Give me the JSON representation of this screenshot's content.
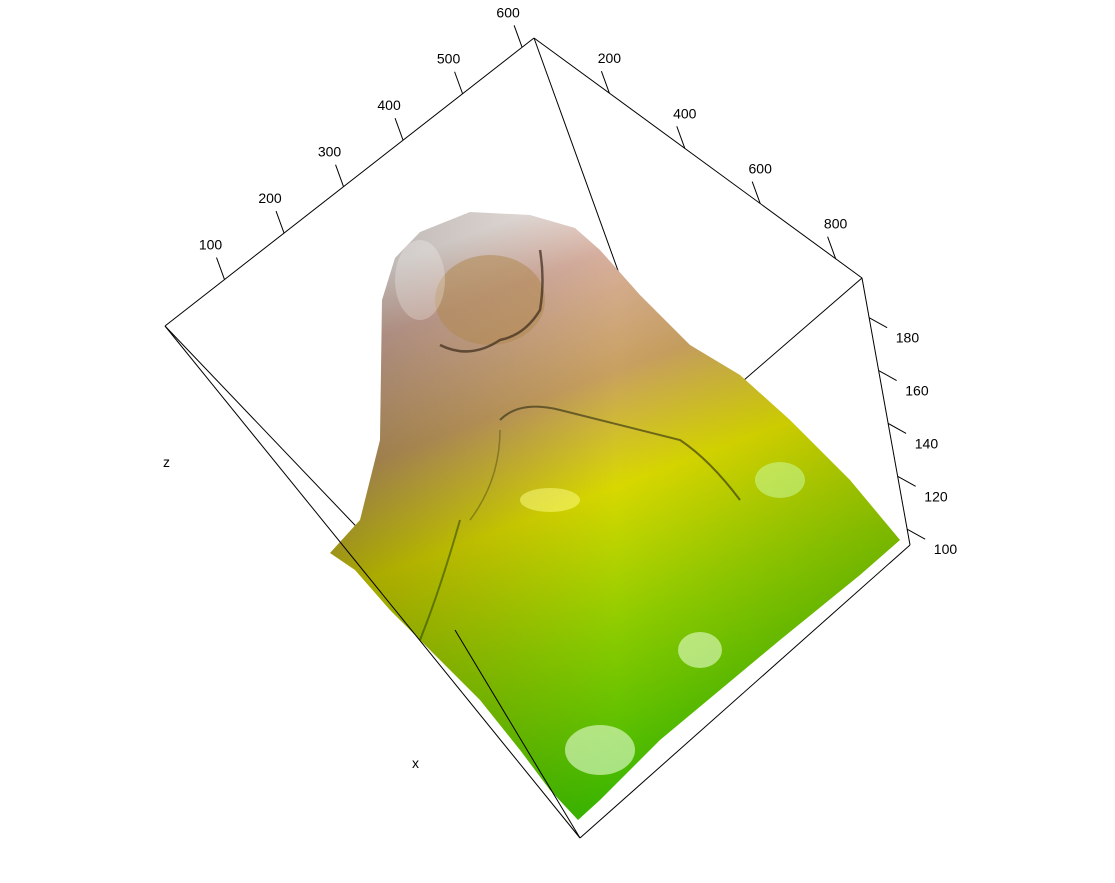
{
  "chart_data": {
    "type": "surface",
    "dataset": "volcano",
    "axis_titles": {
      "x": "x",
      "y": "",
      "z": "z"
    },
    "x_axis": {
      "ticks": [
        100,
        200,
        300,
        400,
        500,
        600
      ],
      "range": [
        0,
        620
      ]
    },
    "y_axis": {
      "ticks": [
        200,
        400,
        600,
        800
      ],
      "range": [
        0,
        870
      ]
    },
    "z_axis": {
      "ticks": [
        100,
        120,
        140,
        160,
        180
      ],
      "range": [
        94,
        195
      ]
    },
    "color_scale": [
      "#00a600",
      "#63c600",
      "#e6e600",
      "#e9bd3a",
      "#ecb176",
      "#efc2b3",
      "#f2f2f2"
    ],
    "grid": false,
    "legend": "none"
  }
}
